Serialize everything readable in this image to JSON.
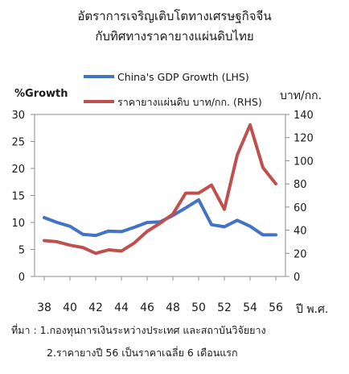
{
  "titles": {
    "line1": "อัตราการเจริญเติบโตทางเศรษฐกิจจีน",
    "line2": "กับทิศทางราคายางแผ่นดิบไทย"
  },
  "chart_data": {
    "type": "line",
    "title": "อัตราการเจริญเติบโตทางเศรษฐกิจจีน กับทิศทางราคายางแผ่นดิบไทย",
    "ylabel_left": "%Growth",
    "ylabel_right": "บาท/กก.",
    "xlabel": "ปี พ.ศ.",
    "x": [
      38,
      39,
      40,
      41,
      42,
      43,
      44,
      45,
      46,
      47,
      48,
      49,
      50,
      51,
      52,
      53,
      54,
      55,
      56
    ],
    "x_ticks": [
      "38",
      "40",
      "42",
      "44",
      "46",
      "48",
      "50",
      "52",
      "54",
      "56"
    ],
    "ylim_left": [
      0,
      30
    ],
    "y_ticks_left": [
      "0",
      "5",
      "10",
      "15",
      "20",
      "25",
      "30"
    ],
    "ylim_right": [
      0,
      140
    ],
    "y_ticks_right": [
      "0",
      "20",
      "40",
      "60",
      "80",
      "100",
      "120",
      "140"
    ],
    "grid": false,
    "legend_position": "top",
    "series": [
      {
        "name": "China's GDP Growth (LHS)",
        "axis": "left",
        "color": "#4472c4",
        "values": [
          10.9,
          10.0,
          9.3,
          7.8,
          7.6,
          8.4,
          8.3,
          9.1,
          10.0,
          10.1,
          11.3,
          12.7,
          14.2,
          9.6,
          9.2,
          10.4,
          9.3,
          7.7,
          7.7
        ]
      },
      {
        "name": "ราคายางแผ่นดิบ บาท/กก. (RHS)",
        "axis": "right",
        "color": "#c0504d",
        "values": [
          31,
          30,
          27,
          25,
          20,
          23,
          22,
          29,
          39,
          46,
          54,
          72,
          72,
          79,
          58,
          105,
          131,
          94,
          80
        ]
      }
    ]
  },
  "source": {
    "line1": "ที่มา : 1.กองทุนการเงินระหว่างประเทศ และสถาบันวิจัยยาง",
    "line2": "2.ราคายางปี 56 เป็นราคาเฉลี่ย 6 เดือนแรก"
  }
}
